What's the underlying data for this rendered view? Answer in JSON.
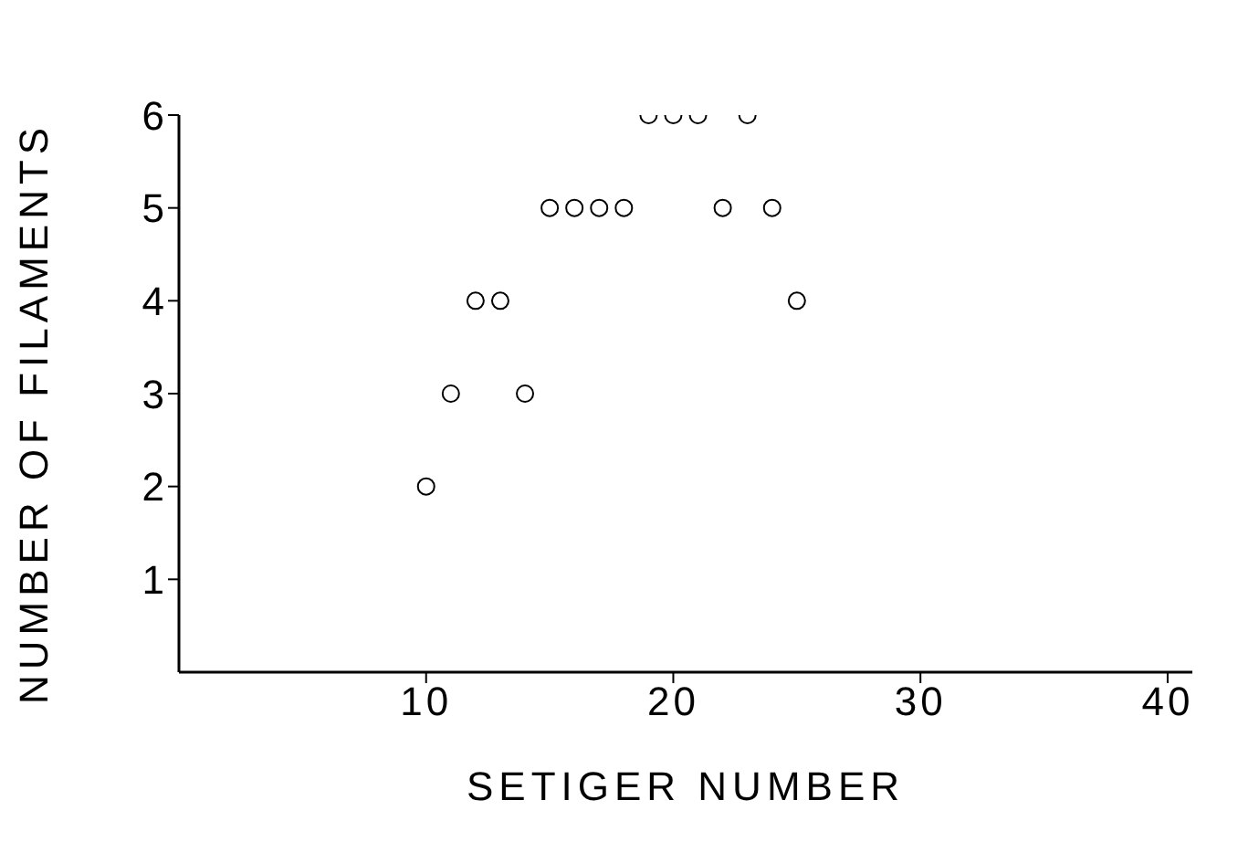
{
  "chart_data": {
    "type": "scatter",
    "xlabel": "SETIGER NUMBER",
    "ylabel": "NUMBER OF FILAMENTS",
    "x": [
      10,
      11,
      12,
      13,
      14,
      15,
      16,
      17,
      18,
      19,
      20,
      21,
      22,
      23,
      24,
      25
    ],
    "series": [
      {
        "color": "#000000",
        "values": [
          2,
          3,
          4,
          4,
          3,
          5,
          5,
          5,
          5,
          6,
          6,
          6,
          5,
          6,
          5,
          4
        ]
      }
    ],
    "xlim": [
      0,
      41
    ],
    "xticks": [
      10,
      20,
      30,
      40
    ],
    "ylim": [
      0,
      6
    ],
    "yticks": [
      1,
      2,
      3,
      4,
      5,
      6
    ],
    "grid": false,
    "legend": false,
    "marker": "circle"
  }
}
